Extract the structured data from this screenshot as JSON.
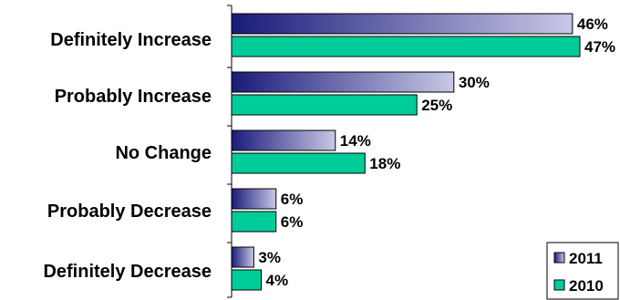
{
  "chart_data": {
    "type": "bar",
    "orientation": "horizontal",
    "categories": [
      "Definitely Increase",
      "Probably Increase",
      "No Change",
      "Probably Decrease",
      "Definitely Decrease"
    ],
    "series": [
      {
        "name": "2011",
        "values": [
          46,
          30,
          14,
          6,
          3
        ],
        "labels": [
          "46%",
          "30%",
          "14%",
          "6%",
          "3%"
        ],
        "color": "#1a1a7a",
        "color_end": "#c8c8e6"
      },
      {
        "name": "2010",
        "values": [
          47,
          25,
          18,
          6,
          4
        ],
        "labels": [
          "47%",
          "25%",
          "18%",
          "6%",
          "4%"
        ],
        "color": "#00cc99"
      }
    ],
    "xlim": [
      0,
      47
    ],
    "grid": false,
    "legend_position": "bottom-right"
  }
}
